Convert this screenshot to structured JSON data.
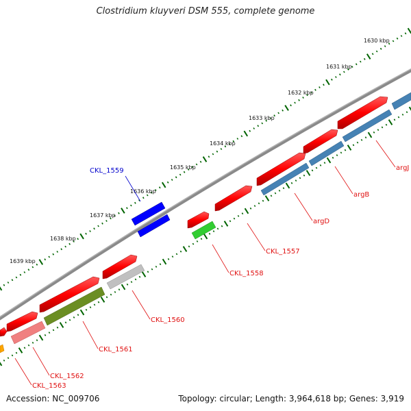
{
  "title": "Clostridium kluyveri DSM 555, complete genome",
  "footer": {
    "accession": "Accession: NC_009706",
    "summary": "Topology: circular; Length: 3,964,618 bp; Genes: 3,919"
  },
  "scale": {
    "ticks": [
      "1630 kbp",
      "1631 kbp",
      "1632 kbp",
      "1633 kbp",
      "1634 kbp",
      "1635 kbp",
      "1636 kbp",
      "1637 kbp",
      "1638 kbp",
      "1639 kbp"
    ]
  },
  "genes": [
    {
      "label": "argJ",
      "color": "#e01010"
    },
    {
      "label": "argB",
      "color": "#e01010"
    },
    {
      "label": "argD",
      "color": "#e01010"
    },
    {
      "label": "CKL_1557",
      "color": "#e01010"
    },
    {
      "label": "CKL_1558",
      "color": "#e01010"
    },
    {
      "label": "CKL_1559",
      "color": "#0000cc"
    },
    {
      "label": "CKL_1560",
      "color": "#e01010"
    },
    {
      "label": "CKL_1561",
      "color": "#e01010"
    },
    {
      "label": "CKL_1562",
      "color": "#e01010"
    },
    {
      "label": "CKL_1563",
      "color": "#e01010"
    }
  ],
  "colors": {
    "backbone": "#777777",
    "forward_gene": "#ff0000",
    "cog_blue": "#4682b4",
    "cog_green": "#32cd32",
    "cog_olive": "#6b8e23",
    "cog_grey": "#c0c0c0",
    "cog_pink": "#f08080",
    "cog_orange": "#ffa500",
    "cog_darkblue": "#0000ff",
    "tick_green": "#006400"
  }
}
